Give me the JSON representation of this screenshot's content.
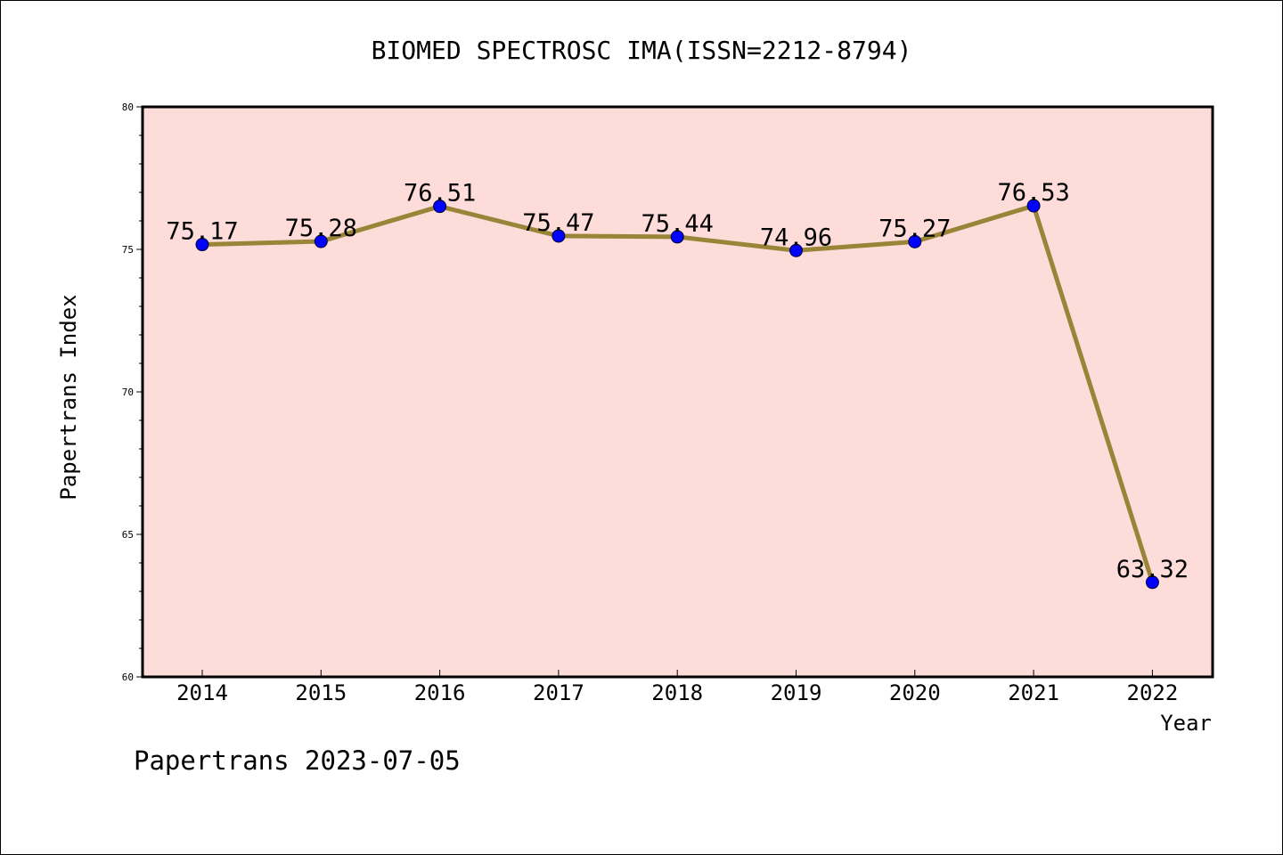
{
  "chart_data": {
    "type": "line",
    "title": "BIOMED SPECTROSC IMA(ISSN=2212-8794)",
    "xlabel": "Year",
    "ylabel": "Papertrans Index",
    "categories": [
      "2014",
      "2015",
      "2016",
      "2017",
      "2018",
      "2019",
      "2020",
      "2021",
      "2022"
    ],
    "series": [
      {
        "values": [
          75.17,
          75.28,
          76.51,
          75.47,
          75.44,
          74.96,
          75.27,
          76.53,
          63.32
        ],
        "labels": [
          "75.17",
          "75.28",
          "76.51",
          "75.47",
          "75.44",
          "74.96",
          "75.27",
          "76.53",
          "63.32"
        ]
      }
    ],
    "ylim": [
      60,
      80
    ],
    "yticks": [
      "60",
      "65",
      "70",
      "75",
      "80"
    ],
    "grid": false,
    "colors": {
      "plot_background": "#fddcd9",
      "line": "#9a8437",
      "marker": "#0000ff"
    }
  },
  "footer": "Papertrans 2023-07-05"
}
